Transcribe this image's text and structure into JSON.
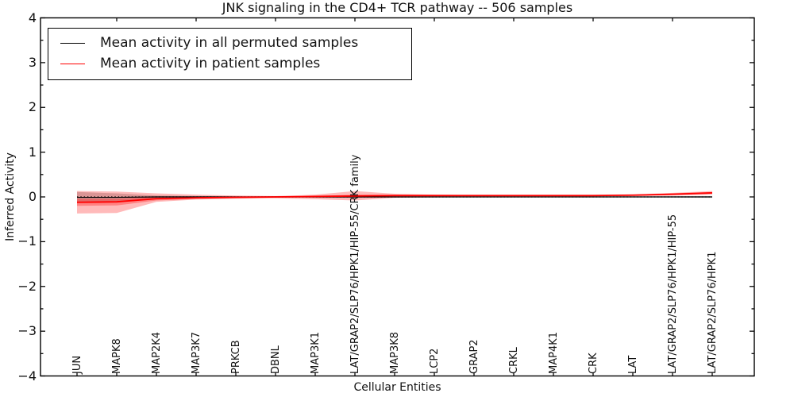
{
  "title": "JNK signaling in the CD4+ TCR pathway -- 506 samples",
  "legend": {
    "items": [
      {
        "label": "Mean activity in all permuted samples",
        "color": "#000000"
      },
      {
        "label": "Mean activity in patient samples",
        "color": "#ff0000"
      }
    ],
    "position": "upper left"
  },
  "chart_data": {
    "type": "line",
    "title": "JNK signaling in the CD4+ TCR pathway -- 506 samples",
    "xlabel": "Cellular Entities",
    "ylabel": "Inferred Activity",
    "ylim": [
      -4,
      4
    ],
    "yticks": [
      4,
      3,
      2,
      1,
      0,
      -1,
      -2,
      -3,
      -4
    ],
    "y_minor_step": 0.5,
    "grid": false,
    "legend_position": "upper left",
    "zero_line": {
      "style": "dotted",
      "color": "#000000",
      "y": 0
    },
    "categories": [
      "JUN",
      "MAPK8",
      "MAP2K4",
      "MAP3K7",
      "PRKCB",
      "DBNL",
      "MAP3K1",
      "LAT/GRAP2/SLP76/HPK1/HIP-55/CRK family",
      "MAP3K8",
      "LCP2",
      "GRAP2",
      "CRKL",
      "MAP4K1",
      "CRK",
      "LAT",
      "LAT/GRAP2/SLP76/HPK1/HIP-55",
      "LAT/GRAP2/SLP76/HPK1"
    ],
    "series": [
      {
        "name": "Mean activity in all permuted samples",
        "color": "#000000",
        "values": [
          -0.01,
          -0.01,
          0,
          0,
          0,
          0,
          0,
          0,
          0,
          0,
          0,
          0,
          0,
          0,
          0,
          0,
          0
        ]
      },
      {
        "name": "Mean activity in patient samples",
        "color": "#ff0000",
        "values": [
          -0.12,
          -0.11,
          -0.04,
          -0.02,
          -0.01,
          0,
          0.01,
          0.02,
          0.03,
          0.03,
          0.03,
          0.03,
          0.03,
          0.03,
          0.04,
          0.06,
          0.09
        ]
      }
    ],
    "bands": [
      {
        "series": "Mean activity in all permuted samples",
        "color": "rgba(0,0,0,0.20)",
        "upper": [
          0.11,
          0.08,
          0.03,
          0.02,
          0.015,
          0.01,
          0.015,
          0.02,
          0.015,
          0.01,
          0.01,
          0.01,
          0.01,
          0.01,
          0.01,
          0.015,
          0.02
        ],
        "lower": [
          -0.13,
          -0.1,
          -0.04,
          -0.025,
          -0.02,
          -0.01,
          -0.015,
          -0.02,
          -0.015,
          -0.01,
          -0.01,
          -0.01,
          -0.01,
          -0.01,
          -0.01,
          -0.015,
          -0.02
        ]
      },
      {
        "series": "Mean activity in patient samples (outer)",
        "color": "rgba(255,0,0,0.27)",
        "upper": [
          0.13,
          0.12,
          0.08,
          0.05,
          0.03,
          0.02,
          0.05,
          0.13,
          0.07,
          0.05,
          0.04,
          0.04,
          0.04,
          0.04,
          0.05,
          0.09,
          0.13
        ],
        "lower": [
          -0.37,
          -0.36,
          -0.11,
          -0.06,
          -0.04,
          -0.03,
          -0.05,
          -0.08,
          -0.02,
          -0.01,
          0,
          0,
          0,
          0,
          0.01,
          0.03,
          0.05
        ]
      },
      {
        "series": "Mean activity in patient samples (inner)",
        "color": "rgba(255,0,0,0.30)",
        "upper": [
          -0.04,
          -0.04,
          0,
          0.005,
          0.005,
          0.01,
          0.02,
          0.05,
          0.045,
          0.04,
          0.04,
          0.04,
          0.04,
          0.04,
          0.05,
          0.08,
          0.11
        ],
        "lower": [
          -0.2,
          -0.19,
          -0.08,
          -0.045,
          -0.025,
          -0.01,
          0,
          -0.01,
          0.015,
          0.02,
          0.02,
          0.02,
          0.02,
          0.02,
          0.03,
          0.04,
          0.07
        ]
      }
    ]
  }
}
